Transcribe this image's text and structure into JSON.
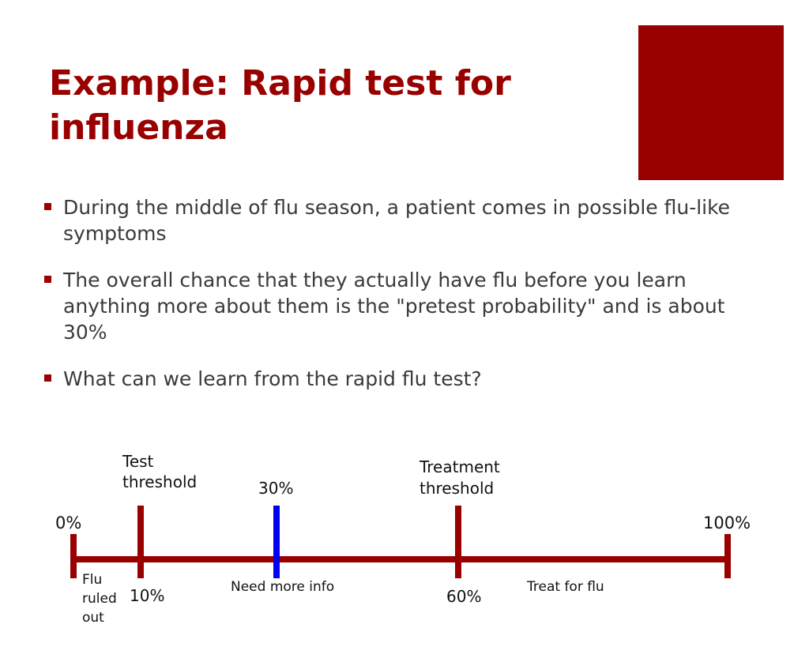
{
  "colors": {
    "accent": "#990000",
    "line": "#990000",
    "marker": "#0000ee",
    "text": "#3a3a3a"
  },
  "slide": {
    "title": "Example: Rapid test for influenza",
    "bullets": [
      "During the middle of flu season, a patient comes in possible flu-like symptoms",
      "The overall chance that they actually have flu before you learn anything more about them is the \"pretest probability\" and is about 30%",
      "What can we learn from the rapid flu test?"
    ]
  },
  "scale": {
    "start_label": "0%",
    "end_label": "100%",
    "test_threshold": {
      "label_line1": "Test",
      "label_line2": "threshold",
      "value_label": "10%"
    },
    "pretest": {
      "value_label": "30%"
    },
    "treatment_threshold": {
      "label_line1": "Treatment",
      "label_line2": "threshold",
      "value_label": "60%"
    },
    "regions": {
      "ruled_out_line1": "Flu",
      "ruled_out_line2": "ruled",
      "ruled_out_line3": "out",
      "need_more_info": "Need more info",
      "treat": "Treat for flu"
    }
  }
}
